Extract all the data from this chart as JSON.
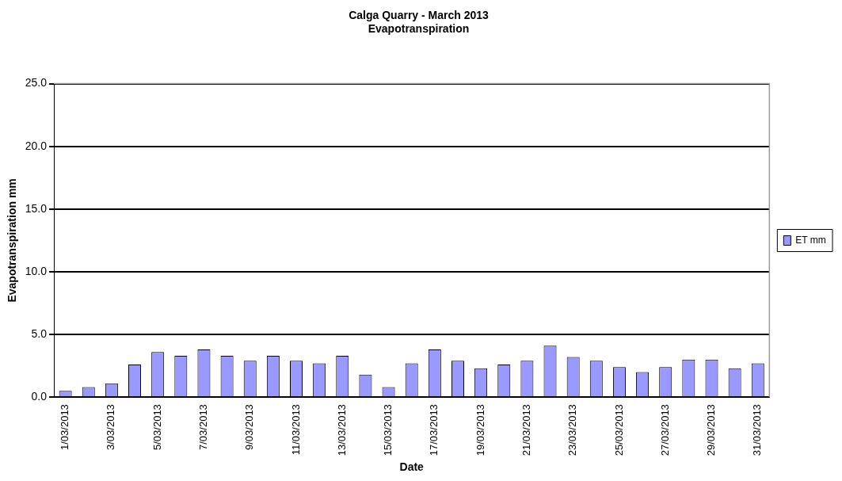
{
  "chart_data": {
    "type": "bar",
    "title": "Calga Quarry - March 2013",
    "subtitle": "Evapotranspiration",
    "xlabel": "Date",
    "ylabel": "Evapotranspiration mm",
    "categories": [
      "1/03/2013",
      null,
      "3/03/2013",
      null,
      "5/03/2013",
      null,
      "7/03/2013",
      null,
      "9/03/2013",
      null,
      "11/03/2013",
      null,
      "13/03/2013",
      null,
      "15/03/2013",
      null,
      "17/03/2013",
      null,
      "19/03/2013",
      null,
      "21/03/2013",
      null,
      "23/03/2013",
      null,
      "25/03/2013",
      null,
      "27/03/2013",
      null,
      "29/03/2013",
      null,
      "31/03/2013"
    ],
    "series": [
      {
        "name": "ET mm",
        "color": "#9999ff",
        "values": [
          0.5,
          0.8,
          1.1,
          2.6,
          3.6,
          3.3,
          3.8,
          3.3,
          2.9,
          3.3,
          2.9,
          2.7,
          3.3,
          1.8,
          0.8,
          2.7,
          3.8,
          2.9,
          2.3,
          2.6,
          2.9,
          4.1,
          3.2,
          2.9,
          2.4,
          2.0,
          2.4,
          3.0,
          3.0,
          2.3,
          2.7
        ]
      }
    ],
    "ylim": [
      0,
      25
    ],
    "yticks": [
      {
        "value": 0,
        "label": "0.0"
      },
      {
        "value": 5,
        "label": "5.0"
      },
      {
        "value": 10,
        "label": "10.0"
      },
      {
        "value": 15,
        "label": "15.0"
      },
      {
        "value": 20,
        "label": "20.0"
      },
      {
        "value": 25,
        "label": "25.0"
      }
    ],
    "grid": "y",
    "legend": "right"
  }
}
